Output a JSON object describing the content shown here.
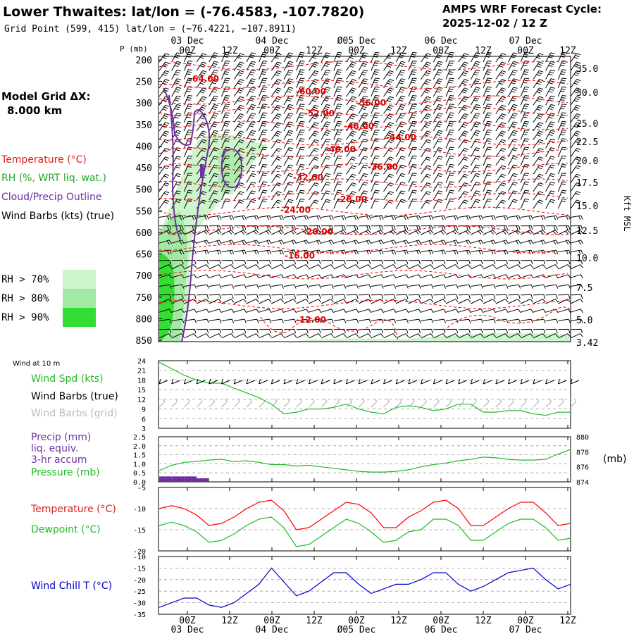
{
  "header": {
    "title": "Lower Thwaites:  lat/lon = (-76.4583, -107.7820)",
    "grid_point": "Grid Point (599, 415) lat/lon = (−76.4221, −107.8911)",
    "forecast_label": "AMPS WRF Forecast Cycle:",
    "forecast_cycle": "2025-12-02 / 12  Z"
  },
  "legend": {
    "model_grid_label": "Model Grid ΔX:",
    "model_grid_value": "8.000 km",
    "temperature": "Temperature (°C)",
    "rh": "RH (%, WRT liq. wat.)",
    "cloud": "Cloud/Precip Outline",
    "wind": "Wind Barbs (kts) (true)",
    "rh_levels": [
      "RH > 70%",
      "RH > 80%",
      "RH > 90%"
    ]
  },
  "colors": {
    "temperature": "#ff0000",
    "rh_70": "#ccf5cc",
    "rh_80": "#a3e8a3",
    "rh_90": "#33dd33",
    "cloud": "#7030a0",
    "wind_spd": "#22bb22",
    "pressure": "#22bb22",
    "precip": "#7030a0",
    "dewpoint": "#22bb22",
    "windchill": "#0000cc"
  },
  "chart_data": [
    {
      "type": "line",
      "name": "time-height cross section",
      "ylabel": "P (mb)",
      "ylabel_right": "Kft MSL",
      "pressure_ticks": [
        "200",
        "250",
        "300",
        "350",
        "400",
        "450",
        "500",
        "550",
        "600",
        "650",
        "700",
        "750",
        "800",
        "850"
      ],
      "height_ticks": [
        "35.0",
        "30.0",
        "25.0",
        "22.5",
        "20.0",
        "17.5",
        "15.0",
        "12.5",
        "10.0",
        "7.5",
        "5.0",
        "3.42"
      ],
      "time_ticks": [
        "00Z",
        "12Z",
        "00Z",
        "12Z",
        "00Z",
        "12Z",
        "00Z",
        "12Z",
        "00Z",
        "12Z"
      ],
      "date_ticks": [
        "03 Dec",
        "04 Dec",
        "Ø05 Dec",
        "06 Dec",
        "07 Dec"
      ],
      "temperature_labels": [
        "-64.00",
        "-60.00",
        "-56.00",
        "-52.00",
        "-48.00",
        "-44.00",
        "-40.00",
        "-36.00",
        "-32.00",
        "-28.00",
        "-24.00",
        "-20.00",
        "-16.00",
        "-12.00"
      ]
    },
    {
      "type": "line",
      "name": "10 m wind",
      "title": "Wind at 10 m",
      "series_labels": [
        "Wind Spd (kts)",
        "Wind Barbs (true)",
        "Wind Barbs (grid)"
      ],
      "y_ticks": [
        "24",
        "21",
        "18",
        "15",
        "12",
        "9",
        "6",
        "3"
      ],
      "ylim": [
        3,
        24
      ],
      "series": [
        {
          "name": "Wind Spd (kts)",
          "values": [
            23.5,
            21.5,
            19.5,
            18,
            17,
            17,
            15.5,
            14,
            12.5,
            10.5,
            7.5,
            8,
            9,
            9,
            9.5,
            10.5,
            9,
            8,
            7.5,
            9.5,
            10,
            9.5,
            8.5,
            9,
            10.5,
            10.5,
            8,
            8,
            8.5,
            8.5,
            7.5,
            7,
            8,
            8
          ]
        }
      ]
    },
    {
      "type": "line",
      "name": "precip and pressure",
      "series_labels": [
        "Precip (mm)",
        "liq. equiv.",
        "3-hr accum",
        "Pressure (mb)"
      ],
      "y_ticks": [
        "2.5",
        "2.0",
        "1.5",
        "1.0",
        "0.5",
        "0.0"
      ],
      "ylim": [
        0,
        2.5
      ],
      "y2_ticks": [
        "880",
        "878",
        "876",
        "874"
      ],
      "y2label": "(mb)",
      "y2lim": [
        874,
        880
      ],
      "precip_values": [
        0.3,
        0.3,
        0.3,
        0.2
      ],
      "series": [
        {
          "name": "Pressure (mb)",
          "values": [
            875.5,
            876.2,
            876.6,
            876.7,
            876.9,
            877,
            876.7,
            876.8,
            876.6,
            876.3,
            876.3,
            876.1,
            876.2,
            876,
            875.8,
            875.6,
            875.4,
            875.3,
            875.3,
            875.4,
            875.6,
            876,
            876.3,
            876.5,
            876.8,
            877,
            877.3,
            877.2,
            877,
            876.9,
            876.9,
            877,
            877.7,
            878.3
          ]
        }
      ]
    },
    {
      "type": "line",
      "name": "temperature and dewpoint",
      "series_labels": [
        "Temperature (°C)",
        "Dewpoint (°C)"
      ],
      "y_ticks": [
        "-5",
        "-10",
        "-15",
        "-20"
      ],
      "ylim": [
        -20,
        -5
      ],
      "series": [
        {
          "name": "Temperature (°C)",
          "values": [
            -10,
            -9.3,
            -10,
            -11.5,
            -14,
            -13.5,
            -12,
            -10,
            -8.5,
            -8,
            -10.5,
            -15,
            -14.5,
            -12.5,
            -10.5,
            -8.5,
            -9,
            -11,
            -14.5,
            -14.5,
            -12,
            -10.5,
            -8.5,
            -8,
            -10,
            -14,
            -14,
            -12,
            -10,
            -8.5,
            -8.5,
            -11,
            -14,
            -13.5
          ]
        },
        {
          "name": "Dewpoint (°C)",
          "values": [
            -14,
            -13.2,
            -14,
            -15.5,
            -18,
            -17.5,
            -16,
            -14,
            -12.5,
            -12,
            -14.5,
            -19,
            -18.5,
            -16.5,
            -14.5,
            -12.5,
            -13.5,
            -15.5,
            -18,
            -17.5,
            -15.5,
            -15,
            -12.5,
            -12.5,
            -14,
            -17.5,
            -17.5,
            -15.5,
            -13.5,
            -12.5,
            -12.5,
            -14.5,
            -17.5,
            -17
          ]
        }
      ]
    },
    {
      "type": "line",
      "name": "wind chill",
      "series_labels": [
        "Wind Chill T (°C)"
      ],
      "y_ticks": [
        "-10",
        "-15",
        "-20",
        "-25",
        "-30",
        "-35"
      ],
      "ylim": [
        -35,
        -10
      ],
      "x_ticks": [
        "00Z",
        "12Z",
        "00Z",
        "12Z",
        "00Z",
        "12Z",
        "00Z",
        "12Z",
        "00Z",
        "12Z"
      ],
      "date_ticks": [
        "03 Dec",
        "04 Dec",
        "Ø05 Dec",
        "06 Dec",
        "07 Dec"
      ],
      "series": [
        {
          "name": "Wind Chill T (°C)",
          "values": [
            -32,
            -30,
            -28,
            -28,
            -31,
            -32,
            -30,
            -26,
            -22,
            -15,
            -21,
            -27,
            -25,
            -21,
            -17,
            -17,
            -22,
            -26,
            -24,
            -22,
            -22,
            -20,
            -17,
            -17,
            -22,
            -25,
            -23,
            -20,
            -17,
            -16,
            -15,
            -20,
            -24,
            -22
          ]
        }
      ]
    }
  ]
}
